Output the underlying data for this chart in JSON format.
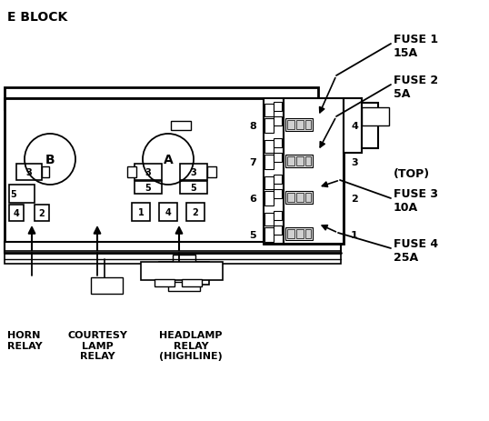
{
  "background_color": "#ffffff",
  "line_color": "#000000",
  "fig_width": 5.38,
  "fig_height": 4.64,
  "dpi": 100,
  "labels": {
    "fuse1": "FUSE 1\n15A",
    "fuse2": "FUSE 2\n5A",
    "fuse3": "FUSE 3\n10A",
    "fuse4": "FUSE 4\n25A",
    "top": "(TOP)",
    "A": "A",
    "B": "B",
    "horn": "HORN\nRELAY",
    "courtesy": "COURTESY\nLAMP\nRELAY",
    "headlamp": "HEADLAMP\nRELAY\n(HIGHLINE)"
  },
  "title": "E BLOCK"
}
